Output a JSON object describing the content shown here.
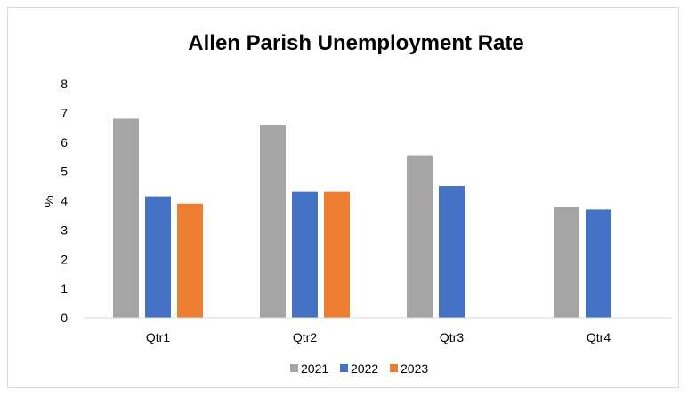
{
  "chart_data": {
    "type": "bar",
    "title": "Allen Parish Unemployment Rate",
    "xlabel": "",
    "ylabel": "%",
    "ylim": [
      0,
      8
    ],
    "yticks": [
      0,
      1,
      2,
      3,
      4,
      5,
      6,
      7,
      8
    ],
    "categories": [
      "Qtr1",
      "Qtr2",
      "Qtr3",
      "Qtr4"
    ],
    "series": [
      {
        "name": "2021",
        "color": "#a5a5a5",
        "values": [
          6.8,
          6.6,
          5.55,
          3.8
        ]
      },
      {
        "name": "2022",
        "color": "#4472c4",
        "values": [
          4.15,
          4.3,
          4.5,
          3.7
        ]
      },
      {
        "name": "2023",
        "color": "#ed7d31",
        "values": [
          3.9,
          4.3,
          null,
          null
        ]
      }
    ],
    "grid": false,
    "legend_position": "bottom"
  }
}
